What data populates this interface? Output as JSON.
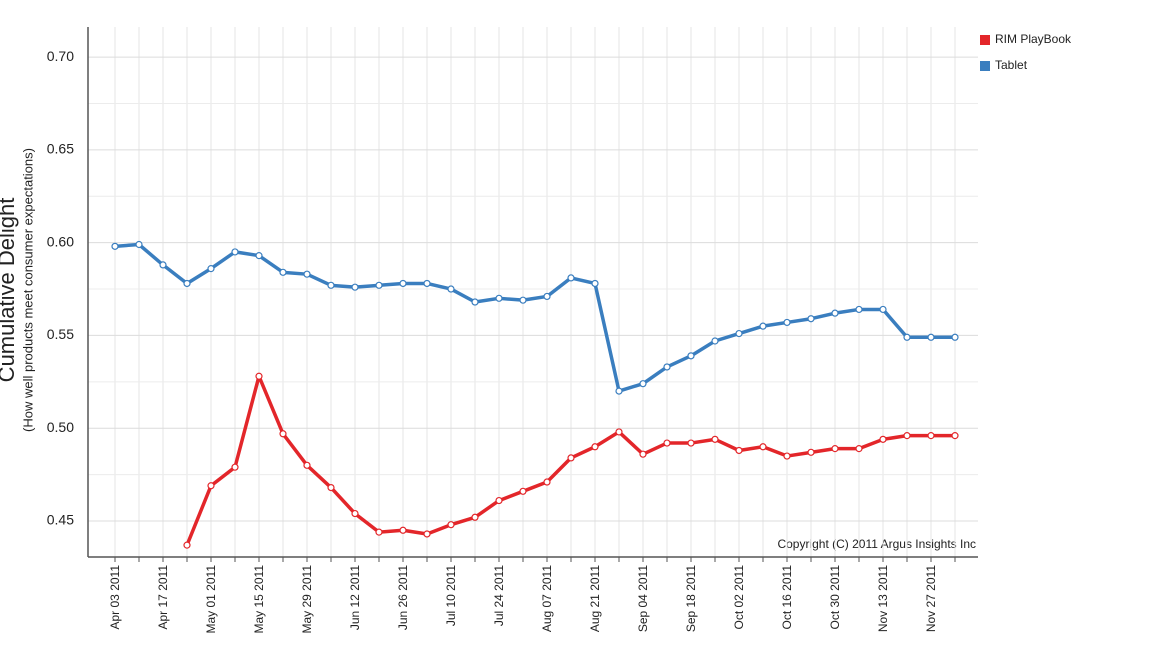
{
  "chart_data": {
    "type": "line",
    "y_label": "Cumulative Delight",
    "y_sublabel": "(How well products meet consumer expectations)",
    "annotation": "Copyright (C) 2011 Argus Insights Inc",
    "categories": [
      "Apr 03 2011",
      null,
      "Apr 17 2011",
      null,
      "May 01 2011",
      null,
      "May 15 2011",
      null,
      "May 29 2011",
      null,
      "Jun 12 2011",
      null,
      "Jun 26 2011",
      null,
      "Jul 10 2011",
      null,
      "Jul 24 2011",
      null,
      "Aug 07 2011",
      null,
      "Aug 21 2011",
      null,
      "Sep 04 2011",
      null,
      "Sep 18 2011",
      null,
      "Oct 02 2011",
      null,
      "Oct 16 2011",
      null,
      "Oct 30 2011",
      null,
      "Nov 13 2011",
      null,
      "Nov 27 2011",
      null
    ],
    "series": [
      {
        "name": "RIM PlayBook",
        "color": "#e3262a",
        "values": [
          null,
          null,
          null,
          0.437,
          0.469,
          0.479,
          0.528,
          0.497,
          0.48,
          0.468,
          0.454,
          0.444,
          0.445,
          0.443,
          0.448,
          0.452,
          0.461,
          0.466,
          0.471,
          0.484,
          0.49,
          0.498,
          0.486,
          0.492,
          0.492,
          0.494,
          0.488,
          0.49,
          0.485,
          0.487,
          0.489,
          0.489,
          0.494,
          0.496,
          0.496,
          0.496
        ]
      },
      {
        "name": "Tablet",
        "color": "#3a7ebf",
        "values": [
          0.598,
          0.599,
          0.588,
          0.578,
          0.586,
          0.595,
          0.593,
          0.584,
          0.583,
          0.577,
          0.576,
          0.577,
          0.578,
          0.578,
          0.575,
          0.568,
          0.57,
          0.569,
          0.571,
          0.581,
          0.578,
          0.52,
          0.524,
          0.533,
          0.539,
          0.547,
          0.551,
          0.555,
          0.557,
          0.559,
          0.562,
          0.564,
          0.564,
          0.549,
          0.549,
          0.549
        ]
      }
    ],
    "ylim": [
      0.4306,
      0.7162
    ],
    "yticks": [
      0.45,
      {
        "value": 0.5,
        "label": "0.50"
      },
      0.55,
      {
        "value": 0.6,
        "label": "0.60"
      },
      0.65,
      {
        "value": 0.7,
        "label": "0.70"
      }
    ],
    "grid": true,
    "legend": "top-right"
  }
}
